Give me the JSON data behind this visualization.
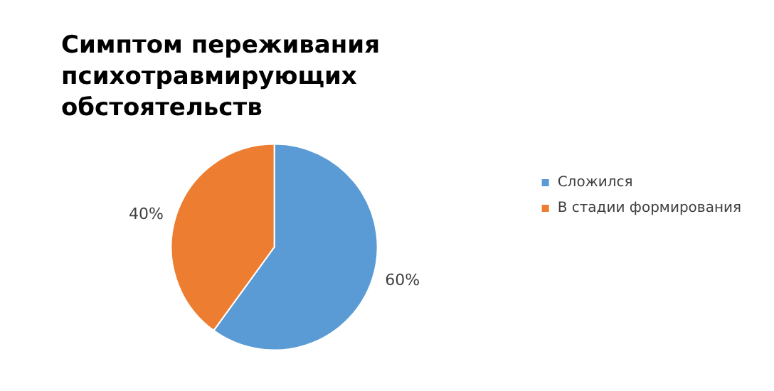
{
  "chart_data": {
    "type": "pie",
    "title": "Симптом переживания психотравмирующих обстоятельств",
    "categories": [
      "Сложился",
      "В стадии формирования"
    ],
    "values": [
      60,
      40
    ],
    "colors": [
      "#5b9bd5",
      "#ed7d31"
    ],
    "value_labels": [
      "60%",
      "40%"
    ],
    "legend": "right"
  }
}
